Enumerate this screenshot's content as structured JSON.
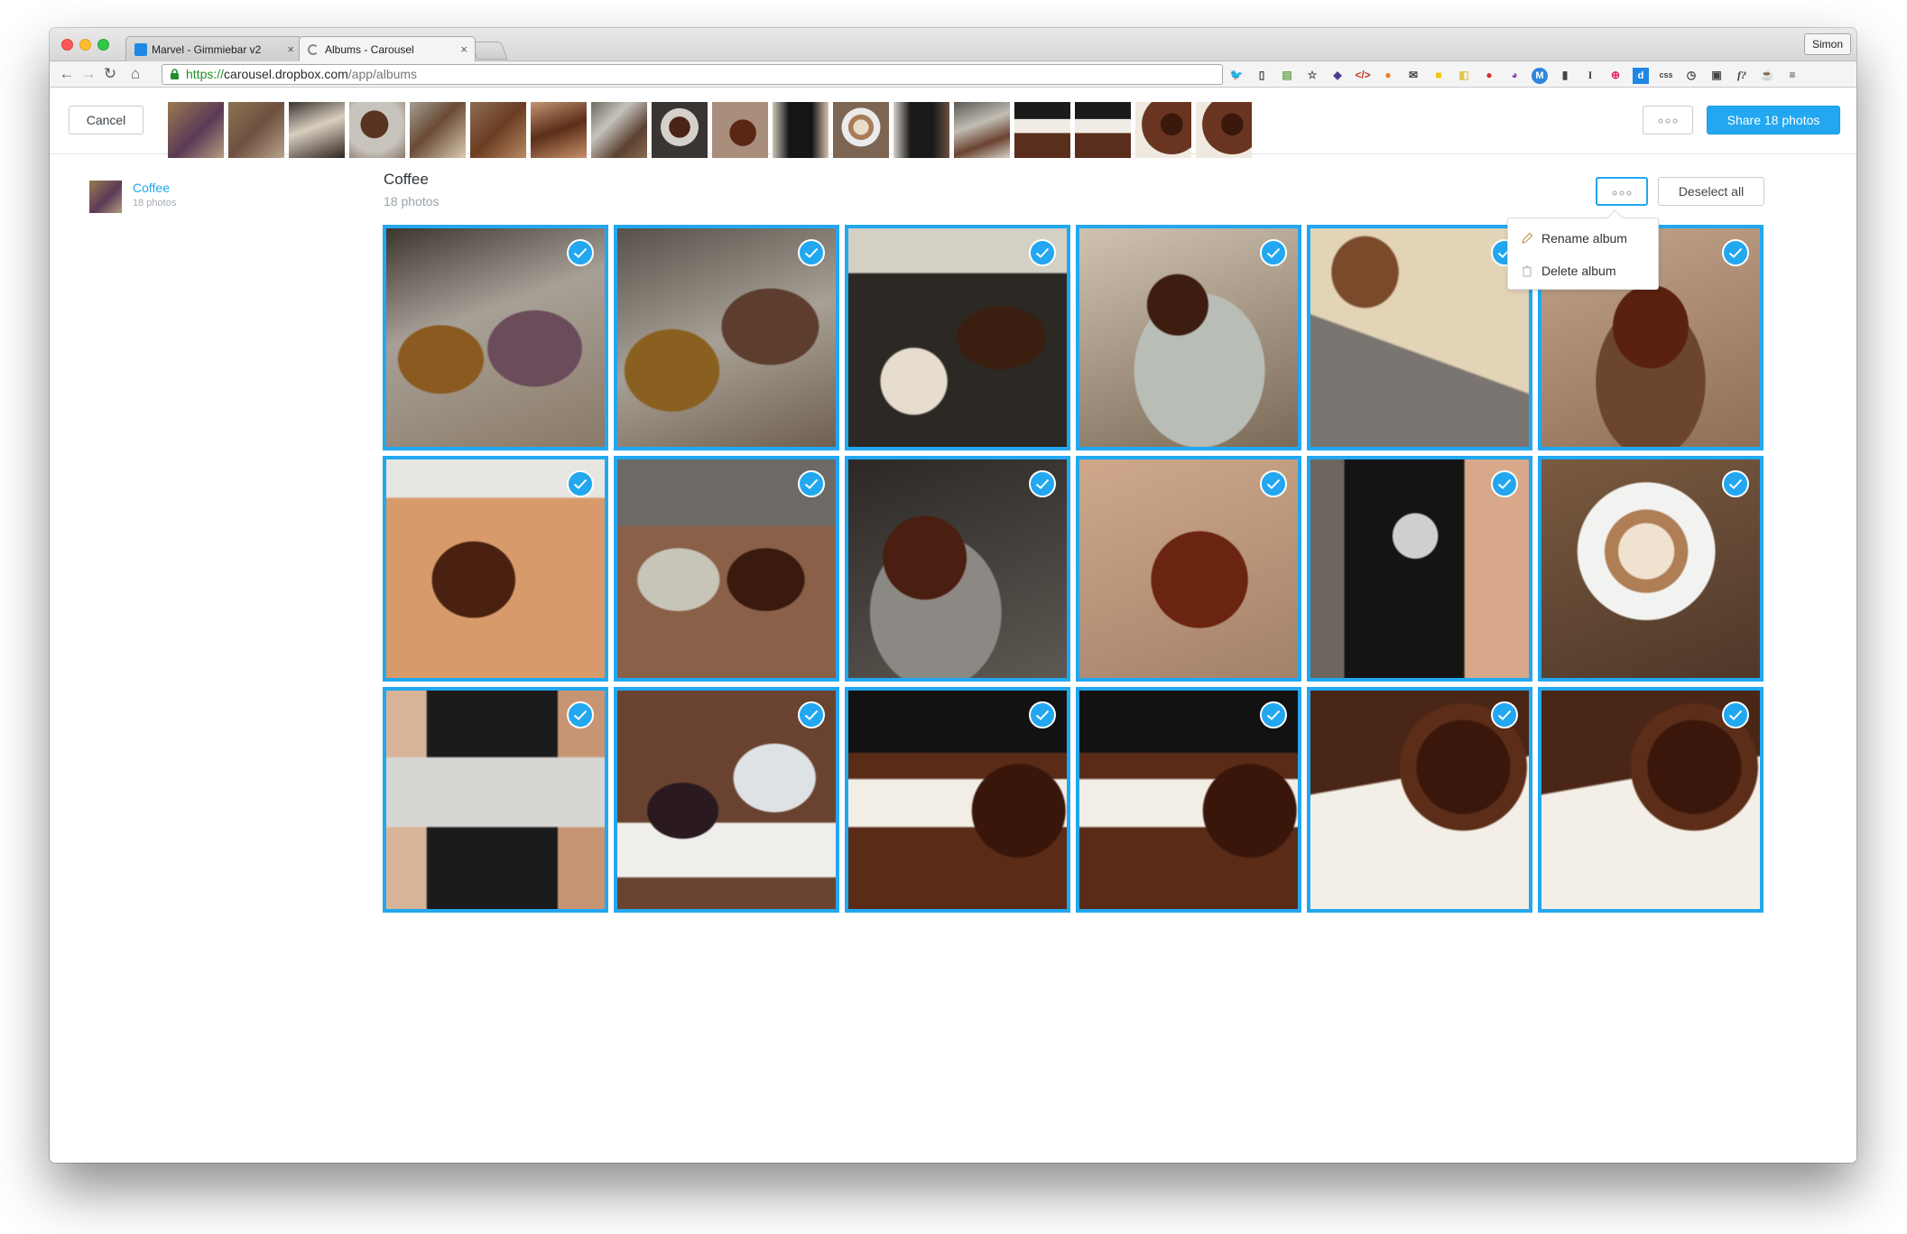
{
  "browser": {
    "tabs": [
      {
        "title": "Marvel - Gimmiebar v2",
        "active": false
      },
      {
        "title": "Albums - Carousel",
        "active": true
      }
    ],
    "profile_name": "Simon",
    "url": {
      "scheme": "https://",
      "host": "carousel.dropbox.com",
      "path": "/app/albums"
    }
  },
  "header": {
    "cancel_label": "Cancel",
    "share_label": "Share 18 photos"
  },
  "sidebar": {
    "album_name": "Coffee",
    "album_count": "18 photos"
  },
  "album": {
    "title": "Coffee",
    "count": "18 photos",
    "deselect_label": "Deselect all",
    "menu": {
      "rename_label": "Rename album",
      "delete_label": "Delete album"
    }
  },
  "colors": {
    "accent": "#22a7f0"
  }
}
